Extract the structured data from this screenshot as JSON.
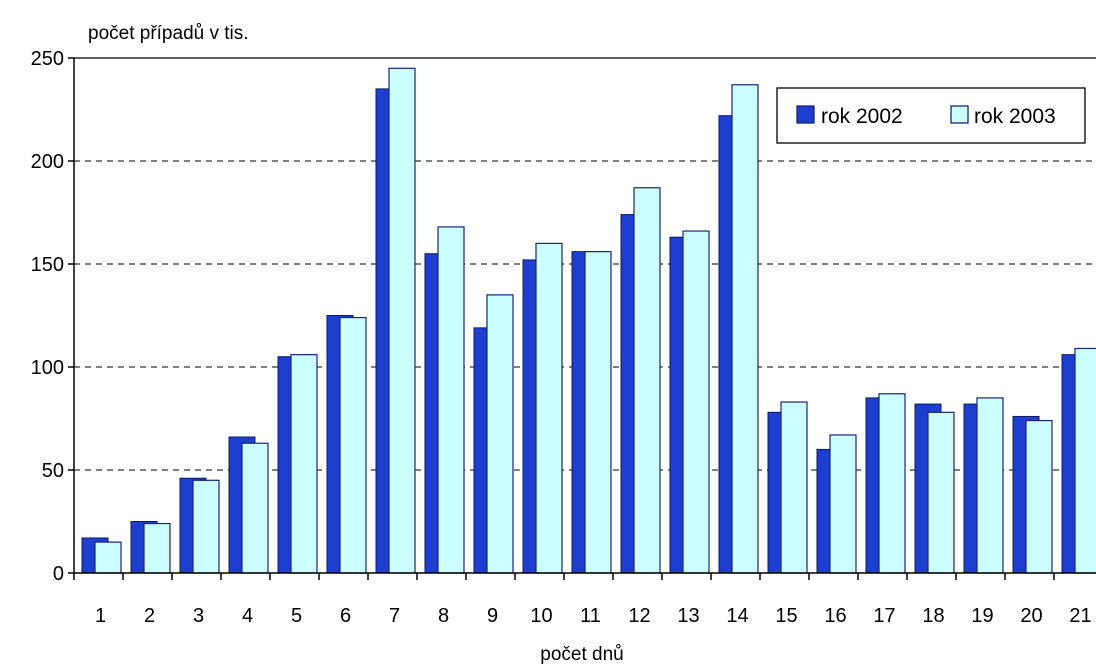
{
  "chart_data": {
    "type": "bar",
    "ylabel": "počet případů v tis.",
    "xlabel": "počet dnů",
    "categories": [
      "1",
      "2",
      "3",
      "4",
      "5",
      "6",
      "7",
      "8",
      "9",
      "10",
      "11",
      "12",
      "13",
      "14",
      "15",
      "16",
      "17",
      "18",
      "19",
      "20",
      "21"
    ],
    "series": [
      {
        "name": "rok 2002",
        "color": "#1c3fcf",
        "values": [
          17,
          25,
          46,
          66,
          105,
          125,
          235,
          155,
          119,
          152,
          156,
          174,
          163,
          222,
          78,
          60,
          85,
          82,
          82,
          76,
          106
        ]
      },
      {
        "name": "rok 2003",
        "color": "#ccffff",
        "values": [
          15,
          24,
          45,
          63,
          106,
          124,
          245,
          168,
          135,
          160,
          156,
          187,
          166,
          237,
          83,
          67,
          87,
          78,
          85,
          74,
          109
        ]
      }
    ],
    "ylim": [
      0,
      250
    ],
    "yticks": [
      "0",
      "50",
      "100",
      "150",
      "200",
      "250"
    ],
    "grid": true,
    "legend": "top-right"
  }
}
